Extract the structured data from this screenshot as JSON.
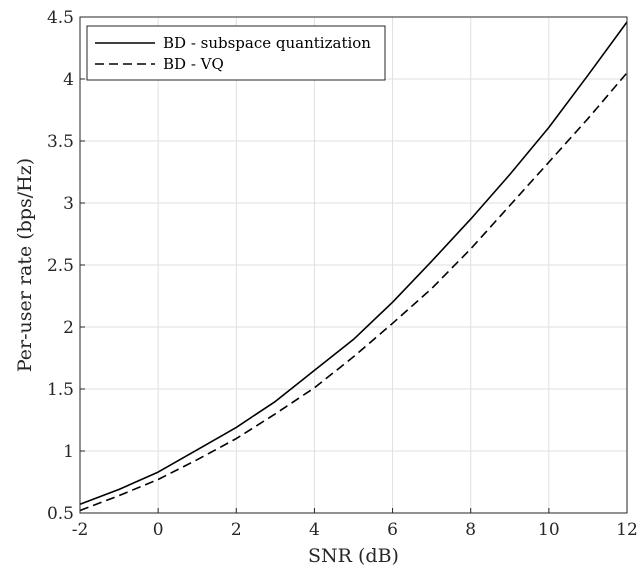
{
  "chart_data": {
    "type": "line",
    "xlabel": "SNR (dB)",
    "ylabel": "Per-user rate (bps/Hz)",
    "xlim": [
      -2,
      12
    ],
    "ylim": [
      0.5,
      4.5
    ],
    "xticks": [
      "-2",
      "0",
      "2",
      "4",
      "6",
      "8",
      "10",
      "12"
    ],
    "yticks": [
      "0.5",
      "1",
      "1.5",
      "2",
      "2.5",
      "3",
      "3.5",
      "4",
      "4.5"
    ],
    "grid": true,
    "legend_position": "top-left",
    "x": [
      -2,
      -1,
      0,
      1,
      2,
      3,
      4,
      5,
      6,
      7,
      8,
      9,
      10,
      11,
      12
    ],
    "series": [
      {
        "name": "BD - subspace quantization",
        "style": "solid",
        "color": "#000000",
        "values": [
          0.57,
          0.69,
          0.83,
          1.01,
          1.19,
          1.4,
          1.65,
          1.9,
          2.2,
          2.53,
          2.87,
          3.23,
          3.61,
          4.03,
          4.46
        ]
      },
      {
        "name": "BD - VQ",
        "style": "dashed",
        "color": "#000000",
        "values": [
          0.52,
          0.64,
          0.77,
          0.93,
          1.1,
          1.3,
          1.51,
          1.76,
          2.03,
          2.31,
          2.63,
          2.98,
          3.33,
          3.68,
          4.05
        ]
      }
    ]
  }
}
